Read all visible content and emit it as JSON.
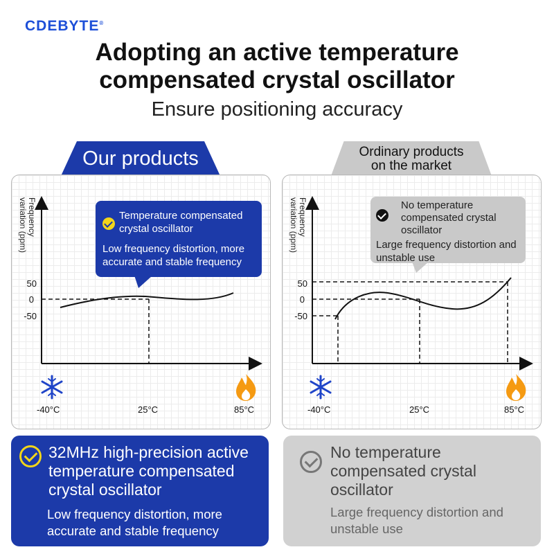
{
  "brand": {
    "name": "CDEBYTE",
    "mark": "®"
  },
  "headline": {
    "line1": "Adopting an active temperature",
    "line2": "compensated crystal oscillator"
  },
  "subheadline": "Ensure positioning accuracy",
  "panels": {
    "ours": {
      "tab_label": "Our products",
      "y_axis_label_line1": "Frequency",
      "y_axis_label_line2": "variation (ppm)",
      "y_ticks": [
        "50",
        "0",
        "-50"
      ],
      "x_ticks": [
        "-40°C",
        "25°C",
        "85°C"
      ],
      "callout": {
        "title": "Temperature compensated crystal oscillator",
        "body": "Low frequency distortion, more accurate and stable frequency"
      }
    },
    "market": {
      "tab_label_line1": "Ordinary products",
      "tab_label_line2": "on the market",
      "y_axis_label_line1": "Frequency",
      "y_axis_label_line2": "variation (ppm)",
      "y_ticks": [
        "50",
        "0",
        "-50"
      ],
      "x_ticks": [
        "-40°C",
        "25°C",
        "85°C"
      ],
      "callout": {
        "title": "No temperature compensated crystal oscillator",
        "body": "Large frequency distortion and unstable use"
      }
    }
  },
  "footer": {
    "ours": {
      "title": "32MHz high-precision active temperature compensated crystal oscillator",
      "body": "Low frequency distortion, more accurate and stable frequency"
    },
    "market": {
      "title": "No temperature compensated crystal oscillator",
      "body": "Large frequency distortion and unstable use"
    }
  },
  "icons": {
    "cold": "snowflake-icon",
    "hot": "flame-icon",
    "check": "check-circle-icon"
  },
  "colors": {
    "brand_blue": "#1c3aa9",
    "logo_blue": "#1d4fd8",
    "market_gray": "#c9c9c9",
    "check_yellow": "#f2d51a",
    "snowflake_blue": "#1f44c8",
    "flame_orange": "#f59a12"
  }
}
